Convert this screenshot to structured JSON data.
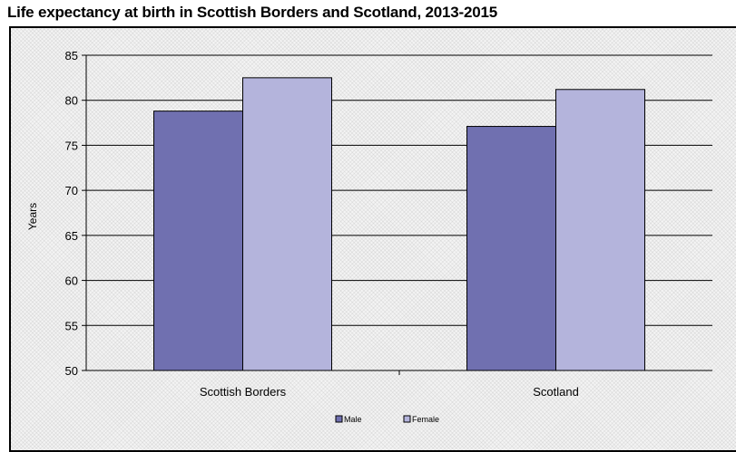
{
  "chart_data": {
    "type": "bar",
    "title": "Life expectancy at birth in Scottish Borders and Scotland, 2013-2015",
    "xlabel": "",
    "ylabel": "Years",
    "categories": [
      "Scottish Borders",
      "Scotland"
    ],
    "series": [
      {
        "name": "Male",
        "values": [
          78.8,
          77.1
        ],
        "color": "#7070b0"
      },
      {
        "name": "Female",
        "values": [
          82.5,
          81.2
        ],
        "color": "#b4b4dc"
      }
    ],
    "ylim": [
      50,
      85
    ],
    "yticks": [
      50,
      55,
      60,
      65,
      70,
      75,
      80,
      85
    ],
    "grid": true,
    "legend_position": "bottom"
  }
}
